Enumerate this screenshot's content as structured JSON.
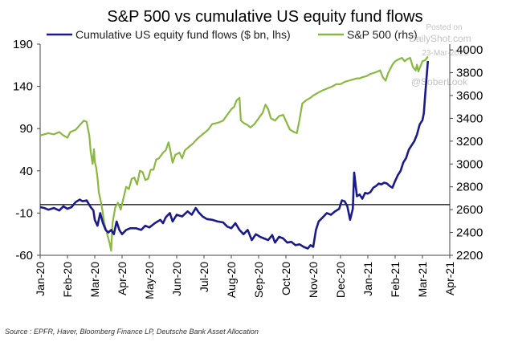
{
  "chart_data": {
    "type": "line",
    "title": "S&P 500 vs cumulative US equity fund flows",
    "source": "Source : EPFR, Haver, Bloomberg Finance LP, Deutsche Bank Asset Allocation",
    "watermark": [
      "Posted on",
      "DailyShot.com",
      "23-Mar-2021",
      "@SoberLook"
    ],
    "x_ticks": [
      "Jan-20",
      "Feb-20",
      "Mar-20",
      "Apr-20",
      "May-20",
      "Jun-20",
      "Jul-20",
      "Aug-20",
      "Sep-20",
      "Oct-20",
      "Nov-20",
      "Dec-20",
      "Jan-21",
      "Feb-21",
      "Mar-21",
      "Apr-21"
    ],
    "left_axis": {
      "label": "$ bn",
      "range": [
        -60,
        190
      ],
      "ticks": [
        190,
        140,
        90,
        40,
        -10,
        -60
      ]
    },
    "right_axis": {
      "label": "S&P 500",
      "range": [
        2200,
        4050
      ],
      "ticks": [
        4000,
        3800,
        3600,
        3400,
        3200,
        3000,
        2800,
        2600,
        2400,
        2200
      ]
    },
    "reference_line": {
      "axis": "left",
      "value": 0
    },
    "series": [
      {
        "name": "Cumulative US equity fund flows ($ bn, lhs)",
        "axis": "left",
        "color": "#1a1a8c",
        "points": [
          [
            0,
            -3
          ],
          [
            0.15,
            -4
          ],
          [
            0.3,
            -6
          ],
          [
            0.5,
            -4
          ],
          [
            0.7,
            -7
          ],
          [
            0.85,
            -2
          ],
          [
            1.0,
            -5
          ],
          [
            1.15,
            -3
          ],
          [
            1.3,
            3
          ],
          [
            1.45,
            6
          ],
          [
            1.55,
            4
          ],
          [
            1.7,
            5
          ],
          [
            1.85,
            -3
          ],
          [
            1.95,
            -7
          ],
          [
            2.0,
            -18
          ],
          [
            2.1,
            -25
          ],
          [
            2.2,
            -10
          ],
          [
            2.3,
            -22
          ],
          [
            2.4,
            -30
          ],
          [
            2.5,
            -33
          ],
          [
            2.6,
            -30
          ],
          [
            2.7,
            -35
          ],
          [
            2.8,
            -20
          ],
          [
            2.9,
            -30
          ],
          [
            3.0,
            -35
          ],
          [
            3.15,
            -30
          ],
          [
            3.3,
            -28
          ],
          [
            3.5,
            -28
          ],
          [
            3.7,
            -30
          ],
          [
            3.85,
            -25
          ],
          [
            4.0,
            -27
          ],
          [
            4.2,
            -22
          ],
          [
            4.4,
            -18
          ],
          [
            4.5,
            -22
          ],
          [
            4.6,
            -15
          ],
          [
            4.75,
            -10
          ],
          [
            4.85,
            -20
          ],
          [
            5.0,
            -12
          ],
          [
            5.2,
            -14
          ],
          [
            5.4,
            -8
          ],
          [
            5.55,
            -12
          ],
          [
            5.7,
            -4
          ],
          [
            5.8,
            -9
          ],
          [
            5.95,
            -14
          ],
          [
            6.1,
            -17
          ],
          [
            6.3,
            -18
          ],
          [
            6.5,
            -20
          ],
          [
            6.7,
            -21
          ],
          [
            6.85,
            -26
          ],
          [
            7.0,
            -28
          ],
          [
            7.15,
            -22
          ],
          [
            7.3,
            -30
          ],
          [
            7.45,
            -35
          ],
          [
            7.6,
            -30
          ],
          [
            7.75,
            -42
          ],
          [
            7.9,
            -35
          ],
          [
            8.05,
            -38
          ],
          [
            8.2,
            -40
          ],
          [
            8.35,
            -42
          ],
          [
            8.5,
            -36
          ],
          [
            8.6,
            -45
          ],
          [
            8.75,
            -38
          ],
          [
            8.9,
            -40
          ],
          [
            9.05,
            -45
          ],
          [
            9.2,
            -44
          ],
          [
            9.35,
            -48
          ],
          [
            9.5,
            -47
          ],
          [
            9.65,
            -50
          ],
          [
            9.8,
            -52
          ],
          [
            9.9,
            -48
          ],
          [
            10.0,
            -50
          ],
          [
            10.1,
            -30
          ],
          [
            10.2,
            -20
          ],
          [
            10.35,
            -15
          ],
          [
            10.5,
            -10
          ],
          [
            10.65,
            -12
          ],
          [
            10.8,
            -8
          ],
          [
            10.95,
            -5
          ],
          [
            11.05,
            5
          ],
          [
            11.15,
            4
          ],
          [
            11.25,
            -2
          ],
          [
            11.35,
            -18
          ],
          [
            11.45,
            -5
          ],
          [
            11.5,
            38
          ],
          [
            11.6,
            10
          ],
          [
            11.7,
            12
          ],
          [
            11.8,
            7
          ],
          [
            11.9,
            14
          ],
          [
            12.0,
            13
          ],
          [
            12.1,
            15
          ],
          [
            12.2,
            20
          ],
          [
            12.3,
            22
          ],
          [
            12.4,
            25
          ],
          [
            12.5,
            24
          ],
          [
            12.6,
            26
          ],
          [
            12.7,
            25
          ],
          [
            12.8,
            22
          ],
          [
            12.9,
            20
          ],
          [
            13.0,
            28
          ],
          [
            13.1,
            35
          ],
          [
            13.2,
            40
          ],
          [
            13.3,
            50
          ],
          [
            13.4,
            55
          ],
          [
            13.5,
            65
          ],
          [
            13.6,
            70
          ],
          [
            13.7,
            75
          ],
          [
            13.8,
            83
          ],
          [
            13.9,
            95
          ],
          [
            14.0,
            100
          ],
          [
            14.05,
            108
          ],
          [
            14.1,
            130
          ],
          [
            14.15,
            150
          ],
          [
            14.2,
            170
          ]
        ]
      },
      {
        "name": "S&P 500 (rhs)",
        "axis": "right",
        "color": "#8ab840",
        "points": [
          [
            0,
            3250
          ],
          [
            0.15,
            3260
          ],
          [
            0.3,
            3270
          ],
          [
            0.5,
            3260
          ],
          [
            0.7,
            3280
          ],
          [
            0.85,
            3250
          ],
          [
            1.0,
            3230
          ],
          [
            1.1,
            3280
          ],
          [
            1.3,
            3300
          ],
          [
            1.45,
            3340
          ],
          [
            1.6,
            3380
          ],
          [
            1.7,
            3370
          ],
          [
            1.8,
            3250
          ],
          [
            1.85,
            3110
          ],
          [
            1.92,
            3000
          ],
          [
            1.97,
            3130
          ],
          [
            2.0,
            3020
          ],
          [
            2.05,
            2970
          ],
          [
            2.1,
            2880
          ],
          [
            2.15,
            2750
          ],
          [
            2.25,
            2640
          ],
          [
            2.35,
            2480
          ],
          [
            2.45,
            2390
          ],
          [
            2.55,
            2300
          ],
          [
            2.6,
            2240
          ],
          [
            2.65,
            2480
          ],
          [
            2.75,
            2620
          ],
          [
            2.85,
            2660
          ],
          [
            2.95,
            2600
          ],
          [
            3.05,
            2700
          ],
          [
            3.15,
            2800
          ],
          [
            3.25,
            2780
          ],
          [
            3.35,
            2870
          ],
          [
            3.45,
            2880
          ],
          [
            3.55,
            2820
          ],
          [
            3.65,
            2940
          ],
          [
            3.75,
            2930
          ],
          [
            3.85,
            2860
          ],
          [
            3.95,
            2870
          ],
          [
            4.05,
            2950
          ],
          [
            4.15,
            2950
          ],
          [
            4.25,
            3040
          ],
          [
            4.35,
            3050
          ],
          [
            4.5,
            3100
          ],
          [
            4.6,
            3120
          ],
          [
            4.7,
            3190
          ],
          [
            4.75,
            3140
          ],
          [
            4.85,
            3010
          ],
          [
            4.95,
            3080
          ],
          [
            5.1,
            3100
          ],
          [
            5.2,
            3050
          ],
          [
            5.3,
            3120
          ],
          [
            5.45,
            3150
          ],
          [
            5.6,
            3180
          ],
          [
            5.75,
            3220
          ],
          [
            5.9,
            3250
          ],
          [
            6.0,
            3270
          ],
          [
            6.15,
            3300
          ],
          [
            6.3,
            3350
          ],
          [
            6.5,
            3360
          ],
          [
            6.7,
            3380
          ],
          [
            6.85,
            3430
          ],
          [
            7.0,
            3480
          ],
          [
            7.1,
            3500
          ],
          [
            7.2,
            3560
          ],
          [
            7.3,
            3580
          ],
          [
            7.35,
            3380
          ],
          [
            7.45,
            3360
          ],
          [
            7.6,
            3340
          ],
          [
            7.7,
            3320
          ],
          [
            7.85,
            3350
          ],
          [
            8.0,
            3400
          ],
          [
            8.15,
            3450
          ],
          [
            8.25,
            3520
          ],
          [
            8.35,
            3480
          ],
          [
            8.45,
            3400
          ],
          [
            8.6,
            3380
          ],
          [
            8.75,
            3420
          ],
          [
            8.9,
            3430
          ],
          [
            9.05,
            3350
          ],
          [
            9.15,
            3300
          ],
          [
            9.3,
            3280
          ],
          [
            9.4,
            3270
          ],
          [
            9.5,
            3390
          ],
          [
            9.6,
            3530
          ],
          [
            9.75,
            3560
          ],
          [
            9.9,
            3580
          ],
          [
            10.0,
            3600
          ],
          [
            10.15,
            3620
          ],
          [
            10.3,
            3640
          ],
          [
            10.5,
            3660
          ],
          [
            10.7,
            3680
          ],
          [
            10.85,
            3700
          ],
          [
            11.0,
            3700
          ],
          [
            11.15,
            3720
          ],
          [
            11.3,
            3730
          ],
          [
            11.45,
            3740
          ],
          [
            11.6,
            3750
          ],
          [
            11.7,
            3750
          ],
          [
            11.8,
            3760
          ],
          [
            11.95,
            3770
          ],
          [
            12.1,
            3790
          ],
          [
            12.25,
            3800
          ],
          [
            12.35,
            3810
          ],
          [
            12.45,
            3820
          ],
          [
            12.55,
            3760
          ],
          [
            12.65,
            3730
          ],
          [
            12.75,
            3800
          ],
          [
            12.9,
            3870
          ],
          [
            13.0,
            3900
          ],
          [
            13.15,
            3920
          ],
          [
            13.25,
            3930
          ],
          [
            13.35,
            3900
          ],
          [
            13.45,
            3920
          ],
          [
            13.55,
            3930
          ],
          [
            13.65,
            3850
          ],
          [
            13.75,
            3820
          ],
          [
            13.8,
            3870
          ],
          [
            13.85,
            3810
          ],
          [
            13.95,
            3870
          ],
          [
            14.0,
            3900
          ],
          [
            14.1,
            3910
          ],
          [
            14.2,
            3940
          ]
        ]
      }
    ]
  }
}
